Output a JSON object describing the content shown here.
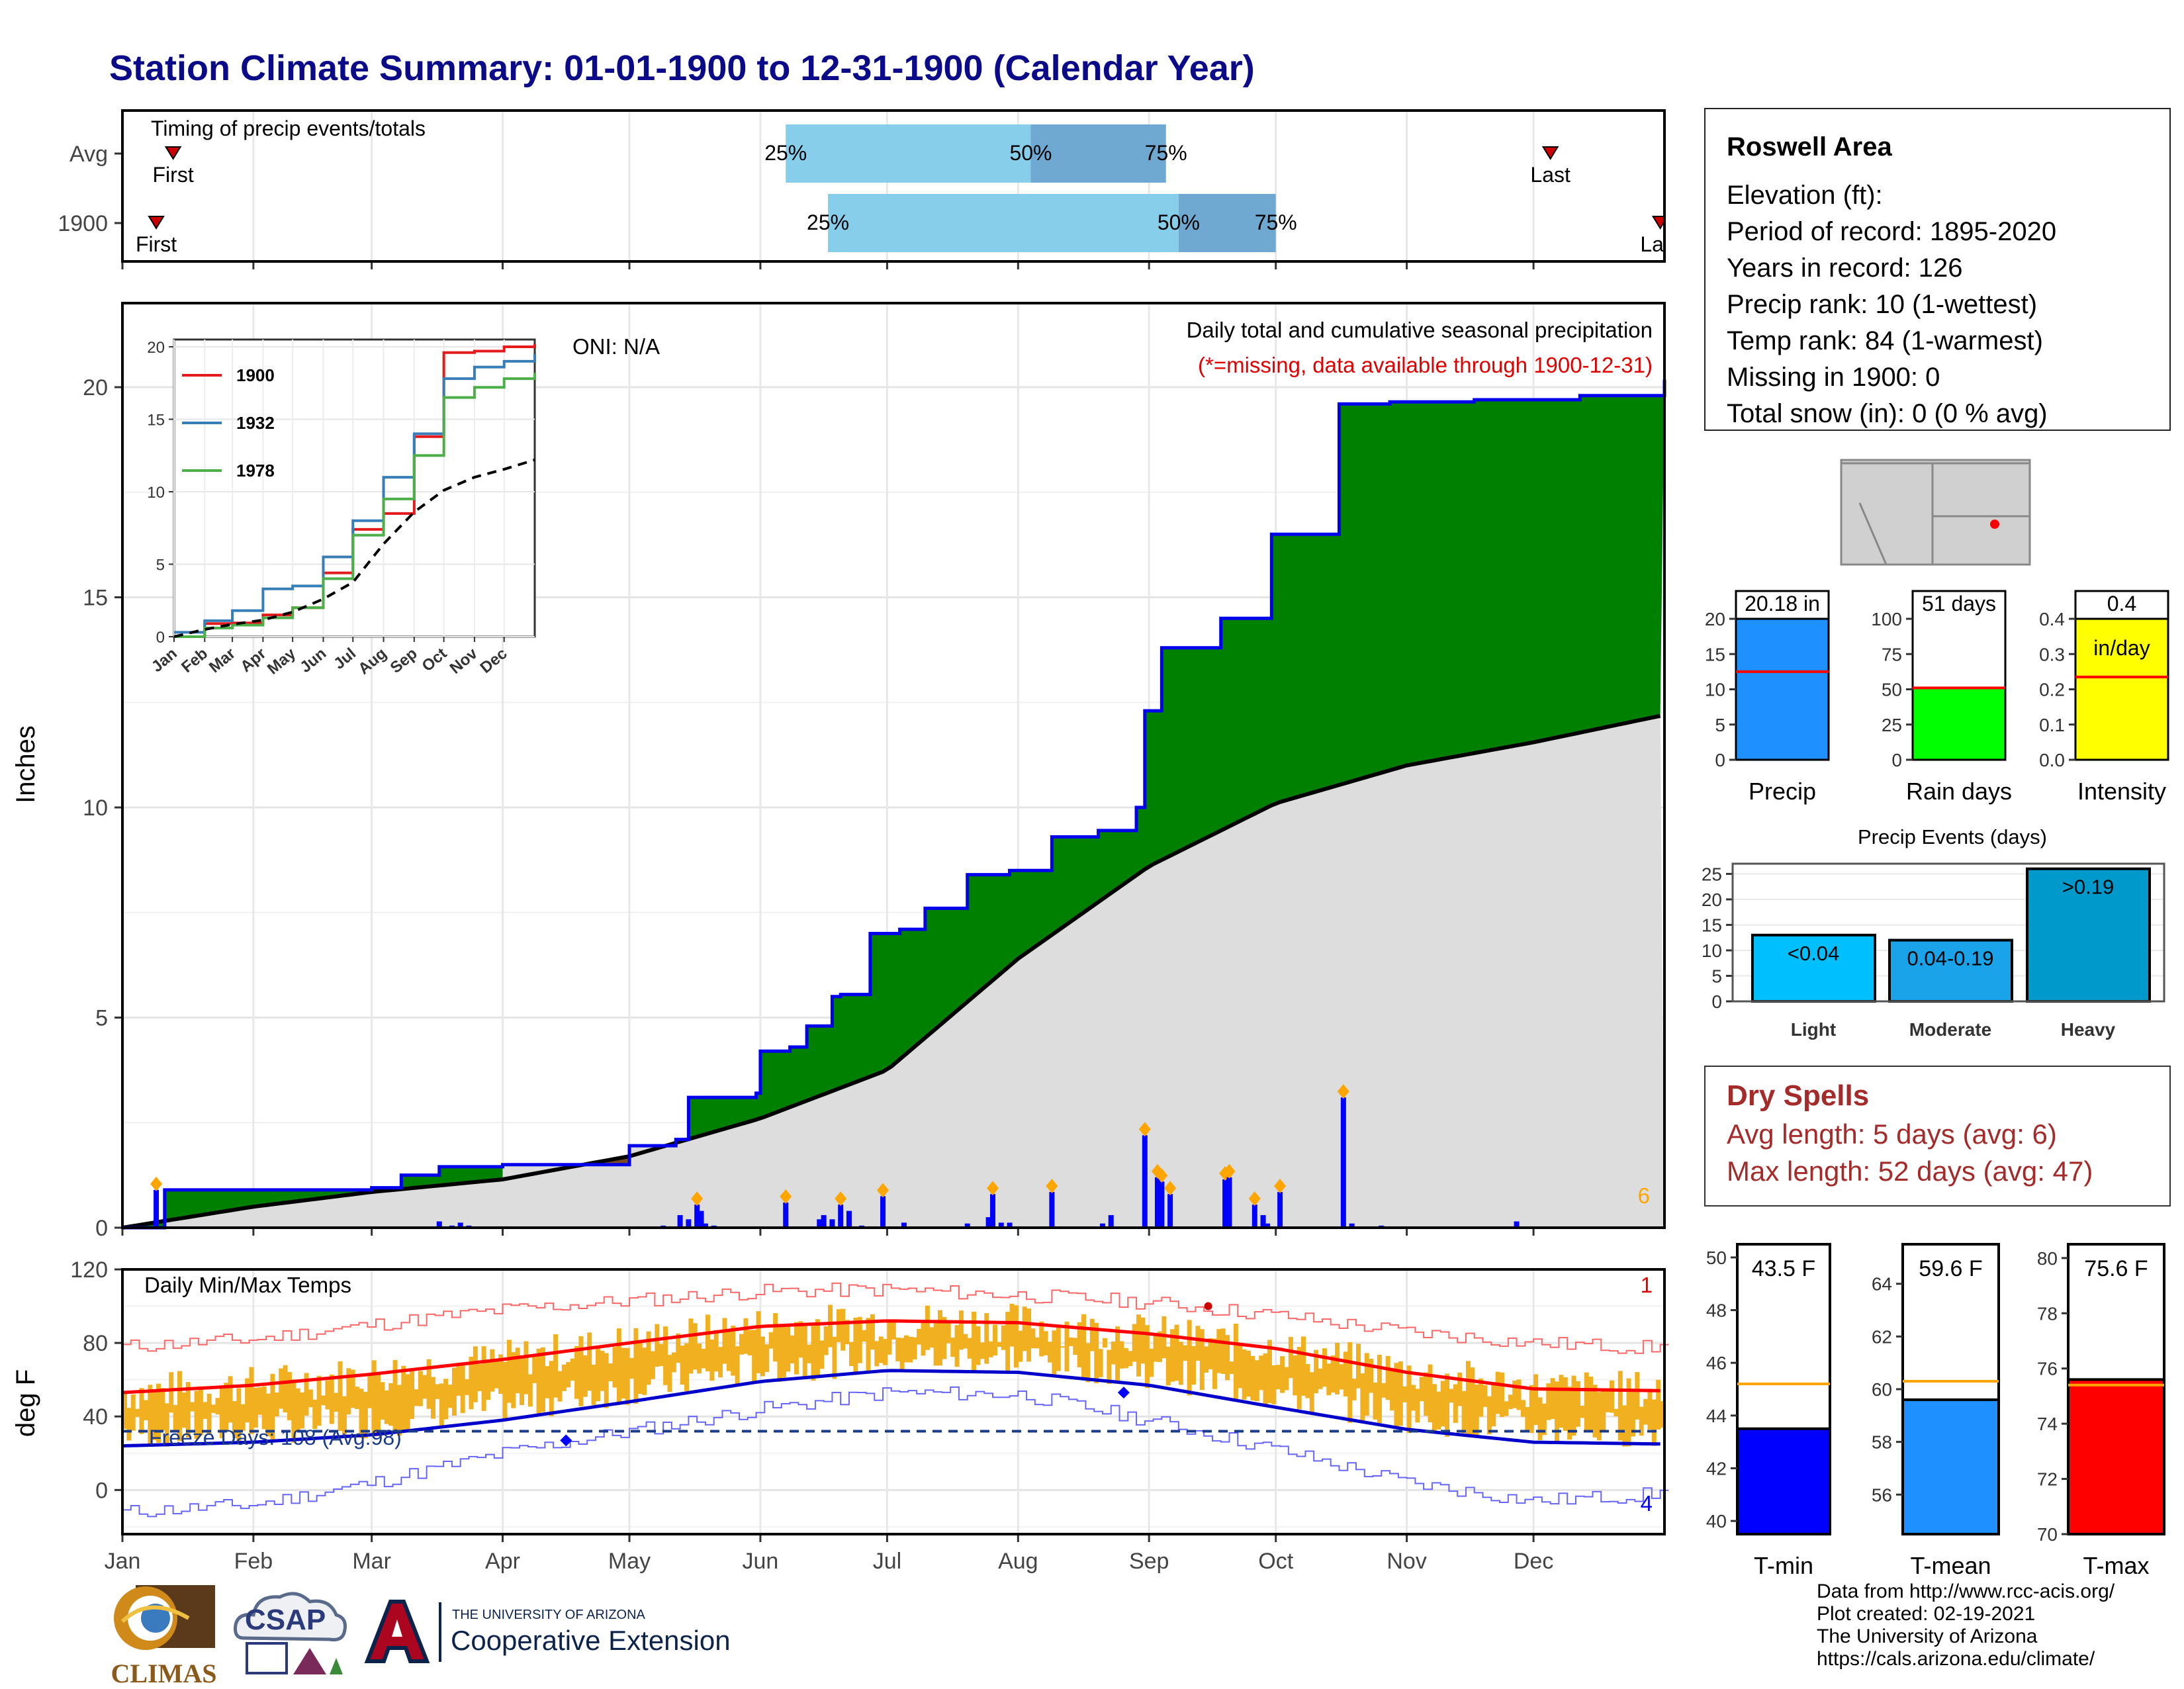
{
  "title": "Station Climate Summary: 01-01-1900 to 12-31-1900 (Calendar Year)",
  "timing_panel": {
    "label": "Timing of precip events/totals",
    "rows": [
      {
        "name": "Avg",
        "first_label": "First",
        "last_label": "Last",
        "first_day": 12,
        "last_day": 338,
        "q25_day": 157,
        "q50_day": 215,
        "q75_day": 247,
        "q25_label": "25%",
        "q50_label": "50%",
        "q75_label": "75%"
      },
      {
        "name": "1900",
        "first_label": "First",
        "last_label": "Last",
        "first_day": 8,
        "last_day": 364,
        "q25_day": 167,
        "q50_day": 250,
        "q75_day": 273,
        "q25_label": "25%",
        "q50_label": "50%",
        "q75_label": "75%"
      }
    ]
  },
  "precip_panel": {
    "ylabel": "Inches",
    "oni_label": "ONI: N/A",
    "title": "Daily total and cumulative seasonal precipitation",
    "subtitle": "(*=missing, data available through 1900-12-31)",
    "extremes_count": "6",
    "ylim": [
      0,
      22
    ],
    "yticks": [
      0,
      5,
      10,
      15,
      20
    ]
  },
  "temp_panel": {
    "ylabel": "deg F",
    "title": "Daily Min/Max Temps",
    "freeze_label": "Freeze Days: 108 (Avg:98)",
    "record_high_count": "1",
    "record_low_count": "4",
    "ylim": [
      -24,
      120
    ],
    "yticks": [
      0,
      40,
      80,
      120
    ],
    "freeze_line": 32
  },
  "months": [
    "Jan",
    "Feb",
    "Mar",
    "Apr",
    "May",
    "Jun",
    "Jul",
    "Aug",
    "Sep",
    "Oct",
    "Nov",
    "Dec"
  ],
  "inset": {
    "yticks": [
      0,
      5,
      10,
      15,
      20
    ],
    "series": [
      {
        "name": "1900",
        "color": "#e41a1c"
      },
      {
        "name": "1932",
        "color": "#377eb8"
      },
      {
        "name": "1978",
        "color": "#4daf4a"
      }
    ]
  },
  "station_info": {
    "name": "Roswell Area",
    "lines": [
      "Elevation (ft):",
      "Period of record: 1895-2020",
      "Years in record: 126",
      "Precip rank: 10 (1-wettest)",
      "Temp rank: 84 (1-warmest)",
      "Missing in 1900: 0",
      "Total snow (in): 0 (0 % avg)"
    ]
  },
  "mini_bars": [
    {
      "name": "Precip",
      "label": "20.18 in",
      "value": 20.18,
      "avg": 12.5,
      "ylim": [
        0,
        20
      ],
      "ticks": [
        0,
        5,
        10,
        15,
        20
      ],
      "color": "#1e90ff"
    },
    {
      "name": "Rain days",
      "label": "51 days",
      "value": 51,
      "avg": 51,
      "ylim": [
        0,
        100
      ],
      "ticks": [
        0,
        25,
        50,
        75,
        100
      ],
      "color": "#00ff00"
    },
    {
      "name": "Intensity",
      "label": "0.4",
      "label2": "in/day",
      "value": 0.4,
      "avg": 0.235,
      "ylim": [
        0,
        0.4
      ],
      "ticks": [
        "0.0",
        "0.1",
        "0.2",
        "0.3",
        "0.4"
      ],
      "color": "#ffff00"
    }
  ],
  "precip_events": {
    "title": "Precip Events (days)",
    "categories": [
      "Light",
      "Moderate",
      "Heavy"
    ],
    "labels": [
      "<0.04",
      "0.04-0.19",
      ">0.19"
    ],
    "values": [
      13,
      12,
      26
    ],
    "colors": [
      "#00bfff",
      "#1aa3e8",
      "#0099cc"
    ],
    "ticks": [
      0,
      5,
      10,
      15,
      20,
      25
    ]
  },
  "dry_spells": {
    "title": "Dry Spells",
    "avg_line": "Avg length: 5 days (avg: 6)",
    "max_line": "Max length: 52 days (avg: 47)"
  },
  "temp_bars": [
    {
      "name": "T-min",
      "label": "43.5 F",
      "value": 43.5,
      "avg": 45.2,
      "ylim": [
        39.5,
        50.5
      ],
      "ticks": [
        40,
        42,
        44,
        46,
        48,
        50
      ],
      "color": "#0000ff"
    },
    {
      "name": "T-mean",
      "label": "59.6 F",
      "value": 59.6,
      "avg": 60.3,
      "ylim": [
        54.5,
        65.5
      ],
      "ticks": [
        56,
        58,
        60,
        62,
        64
      ],
      "color": "#1e90ff"
    },
    {
      "name": "T-max",
      "label": "75.6 F",
      "value": 75.6,
      "avg": 75.4,
      "ylim": [
        70,
        80.5
      ],
      "ticks": [
        70,
        72,
        74,
        76,
        78,
        80
      ],
      "color": "#ff0000"
    }
  ],
  "credits": [
    "Data from http://www.rcc-acis.org/",
    "Plot created: 02-19-2021",
    "The University of Arizona",
    "https://cals.arizona.edu/climate/"
  ],
  "logos": {
    "climas": "CLIMAS",
    "csap": "CSAP",
    "ua_small": "THE UNIVERSITY OF ARIZONA",
    "ua_large": "Cooperative Extension"
  },
  "colors": {
    "title": "#0b0b8a",
    "cumulative_fill": "#008000",
    "deficit_fill": "#7b4a1e",
    "avg_fill": "#dddddd",
    "daily_bar": "#0000ff",
    "extreme_marker": "#ffa500",
    "temp_range": "#f0b020",
    "tmax_avg": "#ff0000",
    "tmin_avg": "#0000cc"
  },
  "chart_data": [
    {
      "type": "bar",
      "name": "timing",
      "categories": [
        "Avg",
        "1900"
      ],
      "series": [
        {
          "name": "Avg",
          "first": "Jan 12",
          "q25": "Jun 6",
          "q50": "Aug 3",
          "q75": "Sep 4",
          "last": "Dec 4"
        },
        {
          "name": "1900",
          "first": "Jan 8",
          "q25": "Jun 16",
          "q50": "Sep 7",
          "q75": "Sep 30",
          "last": "Dec 30"
        }
      ]
    },
    {
      "type": "area",
      "name": "cumulative precipitation",
      "title": "Daily total and cumulative seasonal precipitation",
      "ylabel": "Inches",
      "ylim": [
        0,
        22
      ],
      "x": [
        0,
        10,
        31,
        59,
        66,
        75,
        90,
        104,
        120,
        131,
        134,
        150,
        151,
        158,
        162,
        168,
        170,
        177,
        184,
        190,
        200,
        210,
        220,
        231,
        240,
        242,
        246,
        260,
        272,
        283,
        288,
        300,
        320,
        345,
        365
      ],
      "cumulative_1900": [
        0,
        0.9,
        0.9,
        0.95,
        1.25,
        1.45,
        1.5,
        1.5,
        1.95,
        2.1,
        3.1,
        3.2,
        4.2,
        4.3,
        4.8,
        5.5,
        5.55,
        7.0,
        7.1,
        7.6,
        8.4,
        8.5,
        9.3,
        9.45,
        10.0,
        12.3,
        13.8,
        14.5,
        16.5,
        16.5,
        19.6,
        19.65,
        19.7,
        19.8,
        20.18
      ],
      "avg_x": [
        0,
        31,
        59,
        90,
        120,
        151,
        181,
        212,
        243,
        273,
        304,
        334,
        365
      ],
      "avg_cumulative": [
        0,
        0.5,
        0.85,
        1.15,
        1.7,
        2.6,
        3.75,
        6.4,
        8.6,
        10.1,
        11.0,
        11.55,
        12.2
      ],
      "daily_days": [
        8,
        75,
        78,
        80,
        82,
        98,
        128,
        132,
        134,
        136,
        137,
        138,
        140,
        157,
        165,
        166,
        168,
        170,
        172,
        175,
        180,
        185,
        200,
        205,
        206,
        208,
        210,
        220,
        232,
        234,
        242,
        245,
        246,
        248,
        261,
        262,
        268,
        270,
        271,
        274,
        289,
        291,
        298,
        330
      ],
      "daily_values": [
        0.9,
        0.15,
        0.05,
        0.12,
        0.05,
        0.02,
        0.05,
        0.3,
        0.2,
        0.55,
        0.4,
        0.1,
        0.05,
        0.6,
        0.2,
        0.3,
        0.2,
        0.55,
        0.4,
        0.05,
        0.75,
        0.12,
        0.1,
        0.25,
        0.8,
        0.12,
        0.12,
        0.85,
        0.1,
        0.3,
        2.2,
        1.2,
        1.1,
        0.8,
        1.15,
        1.2,
        0.55,
        0.3,
        0.1,
        0.85,
        3.1,
        0.1,
        0.05,
        0.15
      ]
    },
    {
      "type": "line",
      "name": "inset cumulative comparison",
      "x": [
        0,
        31,
        59,
        90,
        120,
        151,
        181,
        212,
        243,
        273,
        304,
        334,
        365
      ],
      "series": [
        {
          "name": "1900",
          "values": [
            0,
            0.9,
            0.95,
            1.5,
            2.0,
            4.4,
            7.4,
            8.5,
            13.8,
            19.6,
            19.7,
            20.0,
            20.2
          ]
        },
        {
          "name": "1932",
          "values": [
            0.3,
            1.1,
            1.8,
            3.3,
            3.5,
            5.5,
            8.0,
            11.0,
            14.0,
            17.8,
            18.6,
            19.0,
            19.5
          ]
        },
        {
          "name": "1978",
          "values": [
            0,
            0.6,
            0.8,
            1.3,
            2.0,
            4.0,
            7.0,
            9.5,
            12.5,
            16.5,
            17.2,
            17.8,
            18.2
          ]
        },
        {
          "name": "Avg",
          "values": [
            0,
            0.5,
            0.85,
            1.15,
            1.7,
            2.6,
            3.75,
            6.4,
            8.6,
            10.1,
            11.0,
            11.55,
            12.2
          ]
        }
      ],
      "ylim": [
        0,
        20
      ]
    },
    {
      "type": "line",
      "name": "daily temperatures",
      "title": "Daily Min/Max Temps",
      "ylabel": "deg F",
      "ylim": [
        -24,
        120
      ],
      "x": [
        0,
        31,
        59,
        90,
        120,
        151,
        181,
        212,
        243,
        273,
        304,
        334,
        365
      ],
      "tmax_avg": [
        53,
        57,
        63,
        71,
        80,
        89,
        92,
        91,
        85,
        77,
        64,
        55,
        54
      ],
      "tmin_avg": [
        24,
        26,
        30,
        38,
        48,
        59,
        65,
        64,
        57,
        45,
        33,
        26,
        25
      ],
      "record_high": [
        78,
        82,
        90,
        98,
        103,
        108,
        109,
        106,
        102,
        95,
        86,
        80,
        77
      ],
      "record_low": [
        -12,
        -8,
        4,
        20,
        32,
        44,
        53,
        52,
        38,
        22,
        4,
        -6,
        -2
      ]
    },
    {
      "type": "bar",
      "name": "precip events",
      "categories": [
        "Light",
        "Moderate",
        "Heavy"
      ],
      "values": [
        13,
        12,
        26
      ]
    }
  ]
}
